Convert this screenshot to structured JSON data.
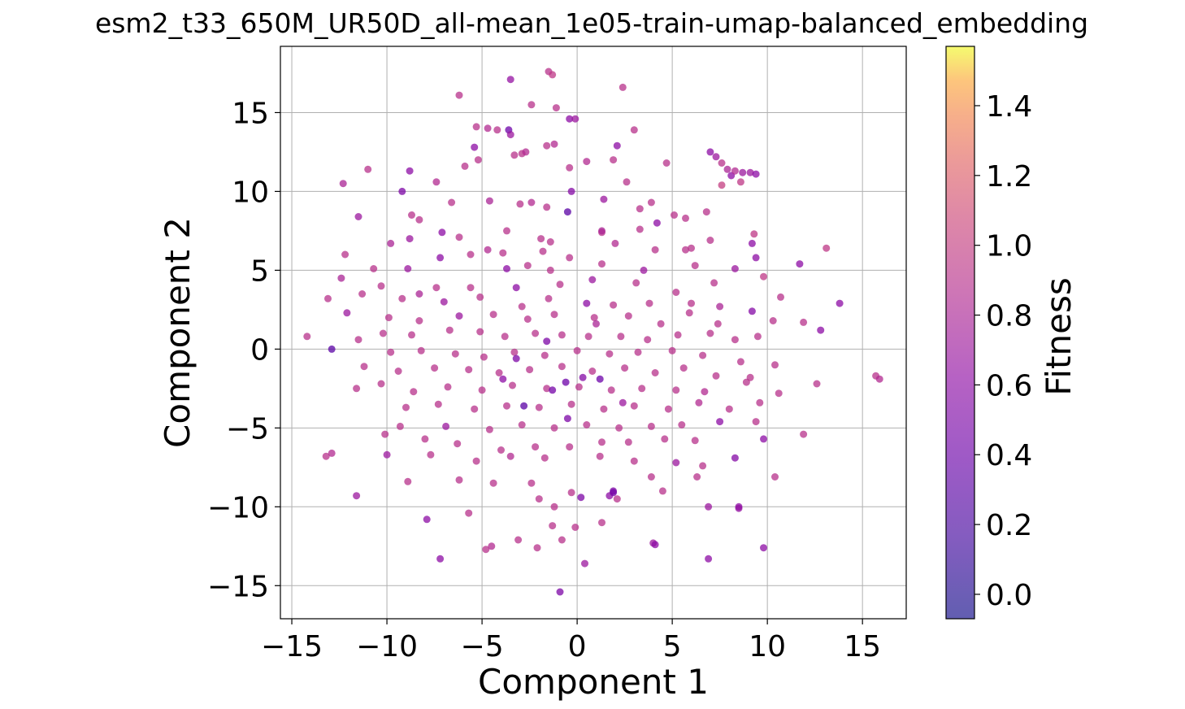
{
  "chart_data": {
    "type": "scatter",
    "title": "esm2_t33_650M_UR50D_all-mean_1e05-train-umap-balanced_embedding",
    "xlabel": "Component 1",
    "ylabel": "Component 2",
    "xlim": [
      -15.6,
      17.3
    ],
    "ylim": [
      -17.1,
      19.2
    ],
    "xticks": [
      -15,
      -10,
      -5,
      0,
      5,
      10,
      15
    ],
    "yticks": [
      -15,
      -10,
      -5,
      0,
      5,
      10,
      15
    ],
    "xtick_labels": [
      "−15",
      "−10",
      "−5",
      "0",
      "5",
      "10",
      "15"
    ],
    "ytick_labels": [
      "−15",
      "−10",
      "−5",
      "0",
      "5",
      "10",
      "15"
    ],
    "grid": true,
    "colormap": "plasma",
    "colorbar": {
      "label": "Fitness",
      "range": [
        -0.07,
        1.57
      ],
      "ticks": [
        0.0,
        0.2,
        0.4,
        0.6,
        0.8,
        1.0,
        1.2,
        1.4
      ],
      "tick_labels": [
        "0.0",
        "0.2",
        "0.4",
        "0.6",
        "0.8",
        "1.0",
        "1.2",
        "1.4"
      ]
    },
    "points": [
      [
        -3.5,
        17.1,
        0.65
      ],
      [
        -1.5,
        17.6,
        0.9
      ],
      [
        -1.3,
        17.4,
        0.95
      ],
      [
        2.4,
        16.6,
        0.9
      ],
      [
        -6.2,
        16.1,
        0.9
      ],
      [
        -2.4,
        15.5,
        0.9
      ],
      [
        -1.1,
        15.3,
        0.9
      ],
      [
        -0.4,
        14.6,
        0.6
      ],
      [
        -0.1,
        14.6,
        0.7
      ],
      [
        -5.3,
        14.1,
        0.9
      ],
      [
        -4.7,
        14.0,
        0.85
      ],
      [
        -4.2,
        13.9,
        0.9
      ],
      [
        -3.6,
        13.9,
        0.4
      ],
      [
        -3.5,
        13.6,
        0.7
      ],
      [
        3.0,
        13.9,
        0.9
      ],
      [
        -5.4,
        12.8,
        0.6
      ],
      [
        -3.3,
        12.3,
        0.9
      ],
      [
        -2.9,
        12.4,
        0.9
      ],
      [
        -2.7,
        12.5,
        0.85
      ],
      [
        -1.6,
        12.9,
        0.9
      ],
      [
        -1.2,
        13.0,
        0.85
      ],
      [
        2.1,
        12.9,
        0.6
      ],
      [
        -0.4,
        11.5,
        0.9
      ],
      [
        0.5,
        11.9,
        0.85
      ],
      [
        1.9,
        12.0,
        0.9
      ],
      [
        4.7,
        11.8,
        0.9
      ],
      [
        7.0,
        12.5,
        0.6
      ],
      [
        7.3,
        12.2,
        0.7
      ],
      [
        7.6,
        11.8,
        0.9
      ],
      [
        7.9,
        11.4,
        0.8
      ],
      [
        8.1,
        11.0,
        0.6
      ],
      [
        8.3,
        11.3,
        0.85
      ],
      [
        8.7,
        11.2,
        0.7
      ],
      [
        9.1,
        11.2,
        0.7
      ],
      [
        9.4,
        11.1,
        0.6
      ],
      [
        7.6,
        10.4,
        1.0
      ],
      [
        8.6,
        10.6,
        0.95
      ],
      [
        -11.0,
        11.4,
        0.9
      ],
      [
        -12.3,
        10.5,
        0.8
      ],
      [
        -8.8,
        11.3,
        0.6
      ],
      [
        -9.2,
        10.0,
        0.5
      ],
      [
        -7.4,
        10.6,
        0.85
      ],
      [
        -5.9,
        11.6,
        0.9
      ],
      [
        -5.2,
        12.0,
        0.9
      ],
      [
        -6.6,
        9.3,
        0.9
      ],
      [
        -4.6,
        9.4,
        0.8
      ],
      [
        -0.3,
        10.0,
        0.55
      ],
      [
        1.4,
        9.5,
        0.7
      ],
      [
        2.6,
        10.6,
        0.9
      ],
      [
        3.9,
        9.3,
        0.9
      ],
      [
        -0.5,
        8.7,
        0.3
      ],
      [
        -3.0,
        9.2,
        0.9
      ],
      [
        -2.4,
        9.3,
        0.85
      ],
      [
        -1.6,
        9.0,
        0.9
      ],
      [
        3.3,
        8.9,
        0.9
      ],
      [
        4.2,
        8.0,
        0.6
      ],
      [
        5.1,
        8.5,
        0.9
      ],
      [
        5.7,
        8.3,
        0.9
      ],
      [
        -11.5,
        8.4,
        0.7
      ],
      [
        -8.7,
        8.5,
        0.9
      ],
      [
        -8.3,
        8.2,
        0.9
      ],
      [
        -6.2,
        7.1,
        0.9
      ],
      [
        -3.7,
        7.5,
        0.9
      ],
      [
        -7.1,
        7.4,
        0.6
      ],
      [
        -1.9,
        7.0,
        0.9
      ],
      [
        -1.4,
        6.8,
        0.9
      ],
      [
        1.3,
        7.4,
        0.9
      ],
      [
        1.3,
        7.5,
        0.8
      ],
      [
        3.3,
        7.6,
        0.9
      ],
      [
        6.8,
        8.7,
        0.9
      ],
      [
        9.3,
        7.3,
        0.95
      ],
      [
        9.2,
        6.7,
        0.6
      ],
      [
        -12.2,
        6.0,
        0.9
      ],
      [
        -9.8,
        6.7,
        0.8
      ],
      [
        -8.8,
        7.0,
        0.7
      ],
      [
        -5.6,
        6.0,
        0.9
      ],
      [
        -4.7,
        6.3,
        0.85
      ],
      [
        -3.9,
        6.1,
        0.9
      ],
      [
        -1.8,
        6.2,
        0.9
      ],
      [
        -0.4,
        5.8,
        0.9
      ],
      [
        2.0,
        6.7,
        0.85
      ],
      [
        4.1,
        6.3,
        0.9
      ],
      [
        5.7,
        6.3,
        0.9
      ],
      [
        6.0,
        6.4,
        0.9
      ],
      [
        7.0,
        6.9,
        0.9
      ],
      [
        9.4,
        5.8,
        0.6
      ],
      [
        13.1,
        6.4,
        0.95
      ],
      [
        -10.7,
        5.1,
        0.9
      ],
      [
        -8.9,
        5.1,
        0.7
      ],
      [
        -7.2,
        5.8,
        0.6
      ],
      [
        -3.7,
        5.1,
        0.6
      ],
      [
        -2.6,
        5.3,
        0.9
      ],
      [
        -1.4,
        5.0,
        0.9
      ],
      [
        1.3,
        5.4,
        0.9
      ],
      [
        3.5,
        5.0,
        0.7
      ],
      [
        6.2,
        5.3,
        0.9
      ],
      [
        8.3,
        5.1,
        0.7
      ],
      [
        11.7,
        5.4,
        0.6
      ],
      [
        -12.4,
        4.5,
        0.8
      ],
      [
        -10.3,
        4.0,
        0.9
      ],
      [
        -8.3,
        3.5,
        0.8
      ],
      [
        -7.4,
        3.9,
        0.9
      ],
      [
        -5.6,
        3.9,
        0.9
      ],
      [
        -3.2,
        3.9,
        0.6
      ],
      [
        -0.9,
        4.1,
        0.9
      ],
      [
        0.8,
        4.4,
        0.7
      ],
      [
        3.1,
        4.2,
        0.9
      ],
      [
        5.2,
        3.6,
        0.9
      ],
      [
        7.2,
        4.2,
        0.9
      ],
      [
        9.8,
        4.6,
        0.95
      ],
      [
        -13.1,
        3.2,
        0.9
      ],
      [
        -11.3,
        3.5,
        0.9
      ],
      [
        -9.2,
        3.2,
        0.9
      ],
      [
        -7.0,
        3.0,
        0.7
      ],
      [
        -5.1,
        3.3,
        0.9
      ],
      [
        -2.9,
        2.7,
        0.9
      ],
      [
        -1.5,
        3.2,
        0.9
      ],
      [
        0.5,
        2.9,
        0.6
      ],
      [
        1.9,
        2.8,
        0.9
      ],
      [
        3.8,
        2.9,
        0.9
      ],
      [
        6.0,
        2.9,
        0.9
      ],
      [
        7.5,
        2.7,
        0.8
      ],
      [
        10.7,
        3.3,
        0.9
      ],
      [
        13.8,
        2.9,
        0.6
      ],
      [
        -12.1,
        2.3,
        0.7
      ],
      [
        -9.9,
        2.0,
        0.9
      ],
      [
        -8.3,
        1.8,
        0.9
      ],
      [
        -6.2,
        2.1,
        0.7
      ],
      [
        -4.4,
        2.2,
        0.9
      ],
      [
        -2.6,
        1.9,
        0.9
      ],
      [
        -1.2,
        2.2,
        0.9
      ],
      [
        0.9,
        2.0,
        0.9
      ],
      [
        2.7,
        2.1,
        0.9
      ],
      [
        4.4,
        1.6,
        0.9
      ],
      [
        5.9,
        2.3,
        0.9
      ],
      [
        7.4,
        1.6,
        0.9
      ],
      [
        9.2,
        2.4,
        0.55
      ],
      [
        10.3,
        1.8,
        0.9
      ],
      [
        11.9,
        1.7,
        0.9
      ],
      [
        -14.2,
        0.8,
        0.9
      ],
      [
        -11.5,
        0.6,
        0.9
      ],
      [
        -10.2,
        1.0,
        0.9
      ],
      [
        -8.7,
        0.9,
        0.9
      ],
      [
        -6.7,
        1.2,
        0.9
      ],
      [
        -5.1,
        1.1,
        0.9
      ],
      [
        -3.8,
        0.8,
        0.9
      ],
      [
        -2.2,
        1.0,
        0.9
      ],
      [
        -0.8,
        0.9,
        0.9
      ],
      [
        0.6,
        0.8,
        0.9
      ],
      [
        2.3,
        0.8,
        0.9
      ],
      [
        3.7,
        0.6,
        0.9
      ],
      [
        5.3,
        0.9,
        0.9
      ],
      [
        7.0,
        1.0,
        0.9
      ],
      [
        8.3,
        0.6,
        0.9
      ],
      [
        9.5,
        0.8,
        0.9
      ],
      [
        12.8,
        1.2,
        0.6
      ],
      [
        -12.9,
        0.0,
        0.3
      ],
      [
        -9.8,
        -0.2,
        0.9
      ],
      [
        -8.2,
        -0.1,
        0.9
      ],
      [
        -6.4,
        -0.3,
        0.9
      ],
      [
        -4.9,
        -0.5,
        0.9
      ],
      [
        -3.3,
        -0.2,
        0.9
      ],
      [
        -1.7,
        -0.4,
        0.9
      ],
      [
        0.0,
        -0.1,
        0.9
      ],
      [
        1.7,
        -0.3,
        0.9
      ],
      [
        3.2,
        -0.2,
        0.9
      ],
      [
        5.0,
        -0.1,
        0.9
      ],
      [
        6.6,
        -0.4,
        0.9
      ],
      [
        8.6,
        -0.8,
        0.9
      ],
      [
        10.4,
        -1.0,
        0.9
      ],
      [
        -11.2,
        -1.1,
        0.9
      ],
      [
        -9.4,
        -1.4,
        0.9
      ],
      [
        -7.5,
        -1.2,
        0.9
      ],
      [
        -5.7,
        -1.3,
        0.9
      ],
      [
        -4.1,
        -1.5,
        0.9
      ],
      [
        -2.5,
        -1.3,
        0.9
      ],
      [
        -0.8,
        -1.1,
        0.9
      ],
      [
        0.8,
        -1.4,
        0.9
      ],
      [
        2.5,
        -1.2,
        0.9
      ],
      [
        4.1,
        -1.5,
        0.9
      ],
      [
        5.6,
        -1.2,
        0.9
      ],
      [
        7.3,
        -1.7,
        0.9
      ],
      [
        9.1,
        -1.8,
        0.9
      ],
      [
        15.7,
        -1.7,
        0.9
      ],
      [
        15.9,
        -1.9,
        0.85
      ],
      [
        -11.6,
        -2.5,
        0.9
      ],
      [
        -10.3,
        -2.2,
        0.9
      ],
      [
        -8.6,
        -2.7,
        0.9
      ],
      [
        -6.8,
        -2.4,
        0.9
      ],
      [
        -5.0,
        -2.6,
        0.9
      ],
      [
        -3.4,
        -2.3,
        0.9
      ],
      [
        -1.6,
        -2.5,
        0.9
      ],
      [
        0.1,
        -2.4,
        0.9
      ],
      [
        1.8,
        -2.6,
        0.9
      ],
      [
        3.4,
        -2.5,
        0.9
      ],
      [
        5.2,
        -2.6,
        0.9
      ],
      [
        6.7,
        -2.7,
        0.85
      ],
      [
        8.9,
        -2.1,
        0.9
      ],
      [
        10.6,
        -2.8,
        0.9
      ],
      [
        12.6,
        -2.2,
        0.9
      ],
      [
        -9.0,
        -3.7,
        0.9
      ],
      [
        -7.3,
        -3.5,
        0.9
      ],
      [
        -5.4,
        -3.8,
        0.9
      ],
      [
        -3.7,
        -3.6,
        0.9
      ],
      [
        -2.0,
        -3.7,
        0.9
      ],
      [
        -0.3,
        -3.5,
        0.9
      ],
      [
        1.4,
        -3.8,
        0.9
      ],
      [
        3.0,
        -3.6,
        0.9
      ],
      [
        4.8,
        -3.8,
        0.9
      ],
      [
        6.4,
        -3.4,
        0.85
      ],
      [
        8.0,
        -3.8,
        0.9
      ],
      [
        9.6,
        -3.4,
        0.9
      ],
      [
        -9.3,
        -4.9,
        0.9
      ],
      [
        -6.9,
        -4.9,
        0.7
      ],
      [
        -4.6,
        -5.1,
        0.9
      ],
      [
        -2.9,
        -4.8,
        0.9
      ],
      [
        -1.2,
        -5.0,
        0.9
      ],
      [
        0.5,
        -4.8,
        0.9
      ],
      [
        2.2,
        -5.0,
        0.9
      ],
      [
        3.9,
        -4.9,
        0.9
      ],
      [
        5.5,
        -4.8,
        0.9
      ],
      [
        7.5,
        -4.6,
        0.6
      ],
      [
        9.4,
        -4.6,
        0.9
      ],
      [
        -10.1,
        -5.4,
        0.9
      ],
      [
        -8.0,
        -5.7,
        0.9
      ],
      [
        -6.3,
        -6.0,
        0.9
      ],
      [
        -4.0,
        -6.4,
        0.9
      ],
      [
        -2.2,
        -6.2,
        0.9
      ],
      [
        -0.4,
        -6.2,
        0.9
      ],
      [
        1.3,
        -5.9,
        0.9
      ],
      [
        2.7,
        -5.9,
        0.9
      ],
      [
        4.6,
        -5.7,
        0.9
      ],
      [
        6.2,
        -5.8,
        0.9
      ],
      [
        9.8,
        -5.7,
        0.6
      ],
      [
        11.9,
        -5.4,
        0.9
      ],
      [
        -13.2,
        -6.8,
        0.9
      ],
      [
        -12.9,
        -6.6,
        0.85
      ],
      [
        -10.0,
        -6.7,
        0.7
      ],
      [
        -7.7,
        -6.7,
        0.9
      ],
      [
        -5.3,
        -7.1,
        0.9
      ],
      [
        -3.5,
        -6.8,
        0.85
      ],
      [
        -1.7,
        -6.9,
        0.9
      ],
      [
        1.2,
        -6.8,
        0.9
      ],
      [
        3.0,
        -7.1,
        0.9
      ],
      [
        5.2,
        -7.2,
        0.7
      ],
      [
        6.6,
        -7.4,
        0.9
      ],
      [
        8.3,
        -6.9,
        0.55
      ],
      [
        10.4,
        -8.1,
        0.9
      ],
      [
        -8.9,
        -8.4,
        0.9
      ],
      [
        -6.2,
        -8.3,
        0.9
      ],
      [
        -4.4,
        -8.5,
        0.9
      ],
      [
        -2.4,
        -8.5,
        0.9
      ],
      [
        -0.3,
        -9.1,
        0.9
      ],
      [
        1.9,
        -9.0,
        0.5
      ],
      [
        1.7,
        -9.3,
        0.6
      ],
      [
        3.9,
        -8.1,
        0.9
      ],
      [
        4.5,
        -9.0,
        0.9
      ],
      [
        6.3,
        -8.1,
        0.9
      ],
      [
        -11.6,
        -9.3,
        0.7
      ],
      [
        -5.7,
        -10.4,
        0.9
      ],
      [
        -2.0,
        -9.5,
        0.9
      ],
      [
        -1.2,
        -10.0,
        0.9
      ],
      [
        0.2,
        -9.4,
        0.5
      ],
      [
        2.1,
        -9.5,
        0.9
      ],
      [
        6.9,
        -10.0,
        0.7
      ],
      [
        8.5,
        -10.0,
        0.6
      ],
      [
        -7.9,
        -10.8,
        0.6
      ],
      [
        -1.3,
        -11.2,
        0.9
      ],
      [
        -0.1,
        -11.3,
        0.9
      ],
      [
        1.3,
        -11.0,
        0.9
      ],
      [
        -4.8,
        -12.7,
        0.9
      ],
      [
        -4.5,
        -12.5,
        0.85
      ],
      [
        -3.1,
        -12.1,
        0.9
      ],
      [
        -2.1,
        -12.6,
        0.9
      ],
      [
        -0.8,
        -12.1,
        0.9
      ],
      [
        0.4,
        -13.6,
        0.7
      ],
      [
        4.0,
        -12.3,
        0.7
      ],
      [
        6.9,
        -13.3,
        0.6
      ],
      [
        9.8,
        -12.6,
        0.6
      ],
      [
        -7.2,
        -13.3,
        0.6
      ],
      [
        -0.9,
        -15.4,
        0.5
      ],
      [
        8.5,
        -10.1,
        0.65
      ],
      [
        4.1,
        -12.4,
        0.6
      ],
      [
        1.9,
        -9.1,
        0.45
      ],
      [
        -1.6,
        0.5,
        0.5
      ],
      [
        -0.6,
        -2.1,
        0.4
      ],
      [
        0.3,
        -1.8,
        0.55
      ],
      [
        -2.8,
        -3.6,
        0.3
      ],
      [
        -0.5,
        -4.4,
        0.5
      ],
      [
        -3.9,
        -1.9,
        0.6
      ],
      [
        -3.2,
        -0.6,
        0.5
      ],
      [
        1.2,
        -1.9,
        0.4
      ],
      [
        2.4,
        -3.4,
        0.7
      ],
      [
        -1.3,
        -2.6,
        0.45
      ],
      [
        1.0,
        1.6,
        0.8
      ]
    ]
  }
}
